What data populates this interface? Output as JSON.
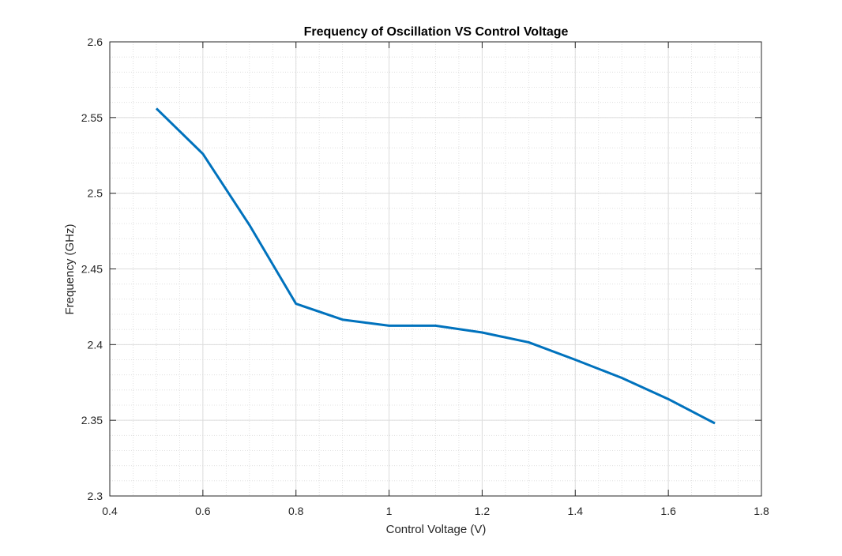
{
  "chart_data": {
    "type": "line",
    "title": "Frequency of Oscillation VS Control Voltage",
    "xlabel": "Control Voltage (V)",
    "ylabel": "Frequency (GHz)",
    "xlim": [
      0.4,
      1.8
    ],
    "ylim": [
      2.3,
      2.6
    ],
    "xticks": [
      0.4,
      0.6,
      0.8,
      1.0,
      1.2,
      1.4,
      1.6,
      1.8
    ],
    "xtick_labels": [
      "0.4",
      "0.6",
      "0.8",
      "1",
      "1.2",
      "1.4",
      "1.6",
      "1.8"
    ],
    "yticks": [
      2.3,
      2.35,
      2.4,
      2.45,
      2.5,
      2.55,
      2.6
    ],
    "ytick_labels": [
      "2.3",
      "2.35",
      "2.4",
      "2.45",
      "2.5",
      "2.55",
      "2.6"
    ],
    "grid": true,
    "minor_grid": true,
    "series": [
      {
        "color": "#0072BD",
        "x": [
          0.5,
          0.6,
          0.7,
          0.8,
          0.9,
          1.0,
          1.1,
          1.2,
          1.3,
          1.4,
          1.5,
          1.6,
          1.7
        ],
        "y": [
          2.556,
          2.526,
          2.479,
          2.427,
          2.4165,
          2.4125,
          2.4125,
          2.408,
          2.4015,
          2.39,
          2.378,
          2.364,
          2.348
        ]
      }
    ]
  }
}
